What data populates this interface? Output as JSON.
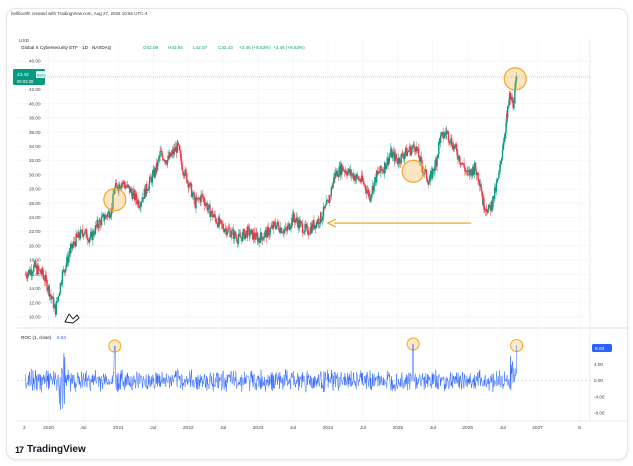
{
  "credit_text": "hellbooth! created with TradingView.com, Aug 27, 2026 10:56 UTC-4",
  "header": {
    "title": "Global X Cybersecurity ETF · 1D · NASDAQ",
    "open": "O42.09",
    "high": "H43.94",
    "low": "L42.07",
    "close": "C43.43",
    "change": "+3.46 (+8.63%)",
    "change2": "+3.46 (+8.63%)",
    "currency": "USD"
  },
  "price_badge": {
    "price": "43.43",
    "countdown": "05:03:38",
    "tag": "BUG"
  },
  "roc_header": {
    "label": "ROC (1, close)",
    "value": "8.63"
  },
  "roc_badge": "8.63",
  "logo_text": "TradingView",
  "colors": {
    "up": "#089981",
    "down": "#f23645",
    "roc": "#2962ff",
    "arrow": "#f5a623",
    "circle": "#f5a623",
    "badge": "#089981"
  },
  "chart_data": [
    {
      "type": "line",
      "title": "Global X Cybersecurity ETF · 1D · NASDAQ",
      "ylabel": "",
      "xlabel": "",
      "ylim": [
        9,
        47
      ],
      "y_ticks": [
        46,
        44,
        42,
        40,
        38,
        36,
        34,
        32,
        30,
        28,
        26,
        24,
        22,
        20,
        18,
        16,
        14,
        12,
        10
      ],
      "x_ticks": [
        "2020",
        "Jul",
        "2021",
        "Jul",
        "2022",
        "Jul",
        "2023",
        "Jul",
        "2024",
        "Jul",
        "2025",
        "Jul",
        "2026",
        "Jul",
        "2027",
        "8"
      ],
      "x_tick_dates": [
        2020.0,
        2020.5,
        2021.0,
        2021.5,
        2022.0,
        2022.5,
        2023.0,
        2023.5,
        2024.0,
        2024.5,
        2025.0,
        2025.5,
        2026.0,
        2026.5,
        2027.0,
        2027.6
      ],
      "xlim": [
        2019.55,
        2027.75
      ],
      "grid": true,
      "series": [
        {
          "kind": "candlestick-approx",
          "x": [
            2019.67,
            2019.8,
            2019.92,
            2020.0,
            2020.1,
            2020.2,
            2020.24,
            2020.3,
            2020.4,
            2020.5,
            2020.6,
            2020.7,
            2020.8,
            2020.9,
            2020.95,
            2021.05,
            2021.15,
            2021.3,
            2021.45,
            2021.55,
            2021.6,
            2021.7,
            2021.85,
            2021.92,
            2022.0,
            2022.1,
            2022.2,
            2022.3,
            2022.45,
            2022.6,
            2022.72,
            2022.85,
            2023.0,
            2023.15,
            2023.25,
            2023.4,
            2023.5,
            2023.6,
            2023.7,
            2023.8,
            2023.9,
            2024.0,
            2024.1,
            2024.2,
            2024.35,
            2024.5,
            2024.6,
            2024.7,
            2024.8,
            2024.9,
            2025.0,
            2025.1,
            2025.25,
            2025.35,
            2025.45,
            2025.55,
            2025.6,
            2025.7,
            2025.8,
            2025.9,
            2026.0,
            2026.1,
            2026.18,
            2026.22,
            2026.3,
            2026.35,
            2026.45,
            2026.5,
            2026.56,
            2026.6,
            2026.65,
            2026.7
          ],
          "y": [
            16,
            17,
            16,
            14,
            11,
            16,
            17,
            19,
            21,
            22,
            21,
            23,
            24,
            25,
            28,
            29,
            28,
            26,
            29,
            31,
            33,
            32,
            34,
            31,
            29,
            26,
            27,
            25,
            23,
            22,
            21,
            22,
            21,
            22,
            23,
            22,
            24,
            23,
            22,
            23,
            24,
            26,
            30,
            31,
            30,
            29,
            27,
            30,
            31,
            33,
            32,
            33,
            34,
            31,
            29,
            32,
            35,
            36,
            34,
            32,
            30,
            31,
            29,
            26,
            25,
            26,
            30,
            34,
            38,
            41,
            40,
            43.4
          ]
        },
        {
          "name": "ROC (1, close)",
          "kind": "oscillator",
          "ylim": [
            -9,
            9
          ],
          "y_ticks": [
            4,
            0,
            -4,
            -8
          ],
          "last_value": 8.63
        }
      ],
      "annotations": [
        {
          "type": "circle",
          "x": 2020.95,
          "y": 26.5
        },
        {
          "type": "circle",
          "x": 2025.22,
          "y": 30.5
        },
        {
          "type": "circle",
          "x": 2026.68,
          "y": 43.5
        },
        {
          "type": "arrow",
          "from_x": 2026.05,
          "to_x": 2024.0,
          "y": 23.2
        },
        {
          "type": "roc-circle",
          "x": 2020.95,
          "y": 8.5
        },
        {
          "type": "roc-circle",
          "x": 2025.22,
          "y": 9.0
        },
        {
          "type": "roc-circle",
          "x": 2026.7,
          "y": 8.63
        }
      ]
    }
  ]
}
